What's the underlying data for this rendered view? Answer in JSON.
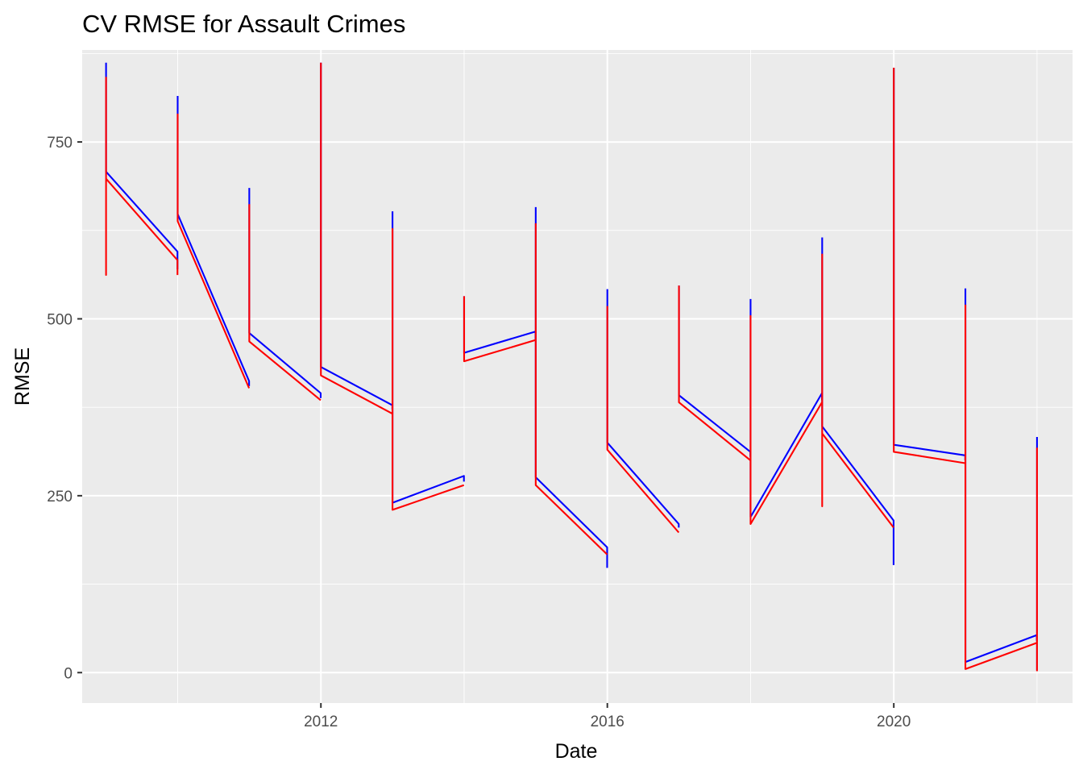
{
  "chart_data": {
    "type": "line",
    "title": "CV RMSE for Assault Crimes",
    "xlabel": "Date",
    "ylabel": "RMSE",
    "x_axis": {
      "type": "date",
      "ticks": [
        "2012",
        "2016",
        "2020"
      ],
      "range": [
        "2008-09",
        "2022-07"
      ],
      "minor_gridlines": [
        "2010",
        "2014",
        "2018",
        "2022"
      ]
    },
    "y_axis": {
      "ticks": [
        0,
        250,
        500,
        750
      ],
      "range": [
        -43,
        880
      ]
    },
    "grid": true,
    "panel_background": "#EBEBEB",
    "legend": "none",
    "series": [
      {
        "color": "#0000FF",
        "segments": [
          [
            [
              "2009-01-01",
              862
            ],
            [
              "2009-01-01",
              708
            ],
            [
              "2009-12-31",
              595
            ],
            [
              "2009-12-31",
              570
            ]
          ],
          [
            [
              "2010-01-01",
              815
            ],
            [
              "2010-01-01",
              648
            ],
            [
              "2010-12-31",
              412
            ],
            [
              "2010-12-31",
              405
            ]
          ],
          [
            [
              "2011-01-01",
              685
            ],
            [
              "2011-01-01",
              480
            ],
            [
              "2011-12-31",
              395
            ],
            [
              "2011-12-31",
              388
            ]
          ],
          [
            [
              "2012-01-01",
              862
            ],
            [
              "2012-01-01",
              432
            ],
            [
              "2012-12-31",
              378
            ],
            [
              "2012-12-31",
              372
            ]
          ],
          [
            [
              "2013-01-01",
              652
            ],
            [
              "2013-01-01",
              240
            ],
            [
              "2013-12-31",
              278
            ],
            [
              "2013-12-31",
              270
            ]
          ],
          [
            [
              "2014-01-01",
              532
            ],
            [
              "2014-01-01",
              452
            ],
            [
              "2014-12-31",
              482
            ],
            [
              "2014-12-31",
              470
            ]
          ],
          [
            [
              "2015-01-01",
              658
            ],
            [
              "2015-01-01",
              276
            ],
            [
              "2015-12-31",
              177
            ],
            [
              "2015-12-31",
              148
            ]
          ],
          [
            [
              "2016-01-01",
              542
            ],
            [
              "2016-01-01",
              325
            ],
            [
              "2016-12-31",
              210
            ],
            [
              "2016-12-31",
              205
            ]
          ],
          [
            [
              "2017-01-01",
              547
            ],
            [
              "2017-01-01",
              392
            ],
            [
              "2017-12-31",
              312
            ],
            [
              "2017-12-31",
              305
            ]
          ],
          [
            [
              "2018-01-01",
              528
            ],
            [
              "2018-01-01",
              220
            ],
            [
              "2018-12-31",
              395
            ],
            [
              "2018-12-31",
              385
            ]
          ],
          [
            [
              "2019-01-01",
              615
            ],
            [
              "2019-01-01",
              348
            ],
            [
              "2019-12-31",
              215
            ],
            [
              "2019-12-31",
              152
            ]
          ],
          [
            [
              "2020-01-01",
              855
            ],
            [
              "2020-01-01",
              322
            ],
            [
              "2020-12-31",
              307
            ],
            [
              "2020-12-31",
              300
            ]
          ],
          [
            [
              "2021-01-01",
              543
            ],
            [
              "2021-01-01",
              15
            ],
            [
              "2021-12-31",
              53
            ],
            [
              "2021-12-31",
              45
            ]
          ],
          [
            [
              "2022-01-01",
              333
            ],
            [
              "2022-01-01",
              3
            ]
          ]
        ]
      },
      {
        "color": "#FF0000",
        "segments": [
          [
            [
              "2009-01-01",
              842
            ],
            [
              "2009-01-01",
              562
            ],
            [
              "2009-01-01",
              698
            ],
            [
              "2009-12-31",
              583
            ],
            [
              "2009-12-31",
              562
            ]
          ],
          [
            [
              "2010-01-01",
              790
            ],
            [
              "2010-01-01",
              638
            ],
            [
              "2010-12-31",
              402
            ],
            [
              "2010-12-31",
              402
            ]
          ],
          [
            [
              "2011-01-01",
              662
            ],
            [
              "2011-01-01",
              468
            ],
            [
              "2011-12-31",
              385
            ],
            [
              "2011-12-31",
              385
            ]
          ],
          [
            [
              "2012-01-01",
              862
            ],
            [
              "2012-01-01",
              420
            ],
            [
              "2012-12-31",
              366
            ],
            [
              "2012-12-31",
              366
            ]
          ],
          [
            [
              "2013-01-01",
              628
            ],
            [
              "2013-01-01",
              230
            ],
            [
              "2013-12-31",
              265
            ],
            [
              "2013-12-31",
              265
            ]
          ],
          [
            [
              "2014-01-01",
              532
            ],
            [
              "2014-01-01",
              440
            ],
            [
              "2014-12-31",
              470
            ],
            [
              "2014-12-31",
              470
            ]
          ],
          [
            [
              "2015-01-01",
              635
            ],
            [
              "2015-01-01",
              265
            ],
            [
              "2015-12-31",
              167
            ],
            [
              "2015-12-31",
              167
            ]
          ],
          [
            [
              "2016-01-01",
              518
            ],
            [
              "2016-01-01",
              315
            ],
            [
              "2016-12-31",
              198
            ],
            [
              "2016-12-31",
              198
            ]
          ],
          [
            [
              "2017-01-01",
              547
            ],
            [
              "2017-01-01",
              382
            ],
            [
              "2017-12-31",
              300
            ],
            [
              "2017-12-31",
              300
            ]
          ],
          [
            [
              "2018-01-01",
              505
            ],
            [
              "2018-01-01",
              210
            ],
            [
              "2018-12-31",
              382
            ],
            [
              "2018-12-31",
              382
            ]
          ],
          [
            [
              "2019-01-01",
              592
            ],
            [
              "2019-01-01",
              235
            ],
            [
              "2019-01-01",
              338
            ],
            [
              "2019-12-31",
              205
            ],
            [
              "2019-12-31",
              205
            ]
          ],
          [
            [
              "2020-01-01",
              855
            ],
            [
              "2020-01-01",
              312
            ],
            [
              "2020-12-31",
              296
            ],
            [
              "2020-12-31",
              296
            ]
          ],
          [
            [
              "2021-01-01",
              520
            ],
            [
              "2021-01-01",
              5
            ],
            [
              "2021-12-31",
              42
            ],
            [
              "2021-12-31",
              42
            ]
          ],
          [
            [
              "2022-01-01",
              318
            ],
            [
              "2022-01-01",
              2
            ]
          ]
        ]
      }
    ]
  }
}
